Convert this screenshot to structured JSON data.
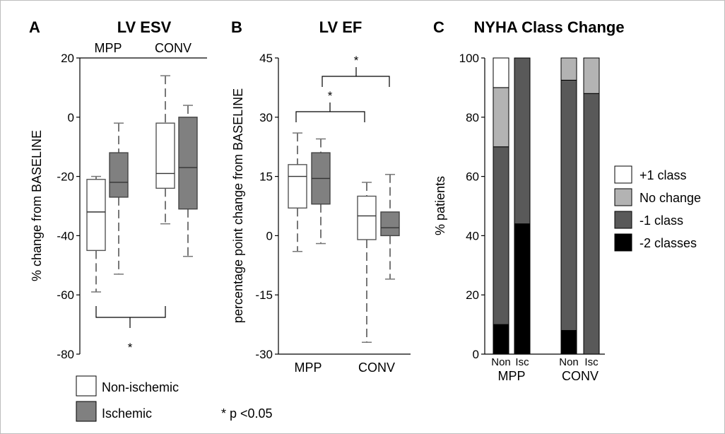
{
  "colors": {
    "non_ischemic": "#ffffff",
    "ischemic": "#808080",
    "plus1": "#ffffff",
    "nochange": "#b3b3b3",
    "minus1": "#595959",
    "minus2": "#000000"
  },
  "legend": {
    "non_ischemic": "Non-ischemic",
    "ischemic": "Ischemic",
    "pvalue": "* p <0.05"
  },
  "chart_data": [
    {
      "type": "box",
      "letter": "A",
      "title": "LV ESV",
      "ylabel": "% change from BASELINE",
      "ylim": [
        -80,
        20
      ],
      "yticks": [
        20,
        0,
        -20,
        -40,
        -60,
        -80
      ],
      "groups": [
        "MPP",
        "CONV"
      ],
      "boxes": [
        {
          "group": "MPP",
          "name": "Non-ischemic",
          "min": -59,
          "q1": -45,
          "median": -32,
          "q3": -21,
          "max": -20
        },
        {
          "group": "MPP",
          "name": "Ischemic",
          "min": -53,
          "q1": -27,
          "median": -22,
          "q3": -12,
          "max": -2
        },
        {
          "group": "CONV",
          "name": "Non-ischemic",
          "min": -36,
          "q1": -24,
          "median": -19,
          "q3": -2,
          "max": 14
        },
        {
          "group": "CONV",
          "name": "Ischemic",
          "min": -47,
          "q1": -31,
          "median": -17,
          "q3": 0,
          "max": 4
        }
      ],
      "significance": "*"
    },
    {
      "type": "box",
      "letter": "B",
      "title": "LV EF",
      "ylabel": "percentage point change from BASELINE",
      "ylim": [
        -30,
        45
      ],
      "yticks": [
        45,
        30,
        15,
        0,
        -15,
        -30
      ],
      "groups": [
        "MPP",
        "CONV"
      ],
      "boxes": [
        {
          "group": "MPP",
          "name": "Non-ischemic",
          "min": -4,
          "q1": 7,
          "median": 15,
          "q3": 18,
          "max": 26
        },
        {
          "group": "MPP",
          "name": "Ischemic",
          "min": -2,
          "q1": 8,
          "median": 14.5,
          "q3": 21,
          "max": 24.5
        },
        {
          "group": "CONV",
          "name": "Non-ischemic",
          "min": -27,
          "q1": -1,
          "median": 5,
          "q3": 10,
          "max": 13.5
        },
        {
          "group": "CONV",
          "name": "Ischemic",
          "min": -11,
          "q1": 0,
          "median": 2,
          "q3": 6,
          "max": 15.5
        }
      ],
      "significance": [
        "*",
        "*"
      ]
    },
    {
      "type": "stacked_bar",
      "letter": "C",
      "title": "NYHA Class Change",
      "ylabel": "% patients",
      "ylim": [
        0,
        100
      ],
      "yticks": [
        100,
        80,
        60,
        40,
        20,
        0
      ],
      "groups": [
        "MPP",
        "CONV"
      ],
      "categories": [
        "Non",
        "Isc",
        "Non",
        "Isc"
      ],
      "series": [
        {
          "name": "-2 classes",
          "values": [
            10,
            44,
            8,
            0
          ]
        },
        {
          "name": "-1 class",
          "values": [
            60,
            56,
            84.5,
            88
          ]
        },
        {
          "name": "No change",
          "values": [
            20,
            0,
            7.5,
            12
          ]
        },
        {
          "name": "+1 class",
          "values": [
            10,
            0,
            0,
            0
          ]
        }
      ],
      "legend_order": [
        "+1 class",
        "No change",
        "-1 class",
        "-2 classes"
      ]
    }
  ]
}
